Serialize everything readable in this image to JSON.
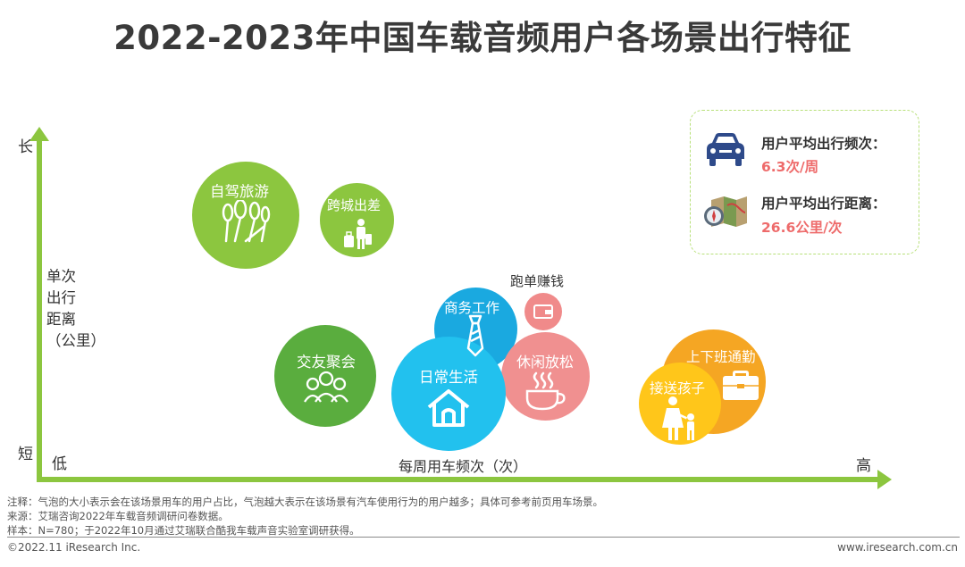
{
  "title": "2022-2023年中国车载音频用户各场景出行特征",
  "chart_data": {
    "type": "scatter",
    "y_axis": {
      "high_label": "长",
      "low_label": "短",
      "title": "单次\n出行\n距离\n（公里）"
    },
    "x_axis": {
      "low_label": "低",
      "high_label": "高",
      "title": "每周用车频次（次）"
    },
    "bubbles": [
      {
        "name": "自驾旅游",
        "color": "#8cc63f",
        "icon": "trees-icon",
        "size": 0.74
      },
      {
        "name": "跨城出差",
        "color": "#8cc63f",
        "icon": "traveler-luggage-icon",
        "size": 0.52
      },
      {
        "name": "跑单赚钱",
        "color": "#f08a8a",
        "icon": "wallet-icon",
        "size": 0.26
      },
      {
        "name": "商务工作",
        "color": "#1aa9e0",
        "icon": "necktie-icon",
        "size": 0.58
      },
      {
        "name": "交友聚会",
        "color": "#5aad3e",
        "icon": "people-group-icon",
        "size": 0.7
      },
      {
        "name": "日常生活",
        "color": "#22c1ee",
        "icon": "house-icon",
        "size": 0.8
      },
      {
        "name": "休闲放松",
        "color": "#f09090",
        "icon": "coffee-cup-icon",
        "size": 0.62
      },
      {
        "name": "上下班通勤",
        "color": "#f5a623",
        "icon": "briefcase-icon",
        "size": 0.73
      },
      {
        "name": "接送孩子",
        "color": "#ffc61a",
        "icon": "parent-child-icon",
        "size": 0.56
      }
    ]
  },
  "legend": {
    "frequency": {
      "label": "用户平均出行频次：",
      "value": "6.3次/周",
      "icon": "car-icon"
    },
    "distance": {
      "label": "用户平均出行距离：",
      "value": "26.6公里/次",
      "icon": "map-compass-icon"
    }
  },
  "notes": {
    "note": "注释：气泡的大小表示会在该场景用车的用户占比，气泡越大表示在该场景有汽车使用行为的用户越多；具体可参考前页用车场景。",
    "source": "来源：艾瑞咨询2022年车载音频调研问卷数据。",
    "sample": "样本：N=780；于2022年10月通过艾瑞联合酷我车载声音实验室调研获得。"
  },
  "footer": {
    "copyright": "©2022.11 iResearch Inc.",
    "website": "www.iresearch.com.cn"
  },
  "colors": {
    "axis": "#8cc63f",
    "title": "#3a3a3a",
    "highlight": "#ee6b6b"
  }
}
